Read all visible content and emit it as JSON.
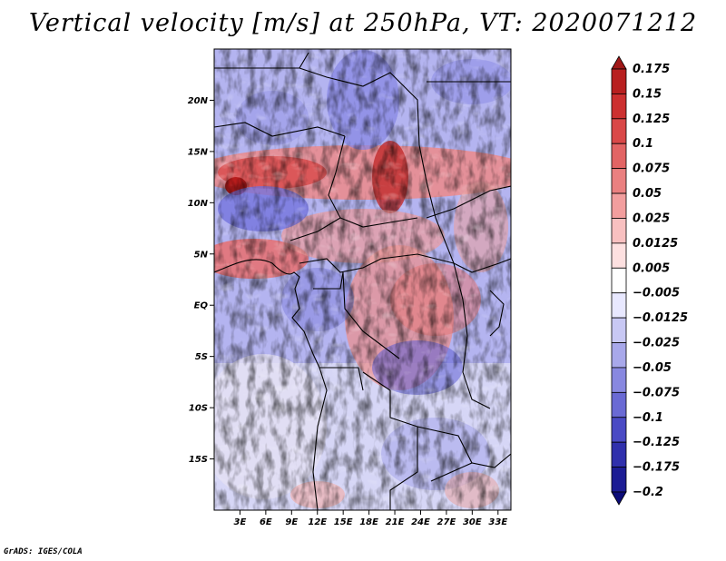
{
  "title": "Vertical velocity [m/s] at 250hPa, VT: 2020071212",
  "credit": "GrADS: IGES/COLA",
  "map": {
    "lat_labels": [
      "20N",
      "15N",
      "10N",
      "5N",
      "EQ",
      "5S",
      "10S",
      "15S"
    ],
    "lat_values": [
      20,
      15,
      10,
      5,
      0,
      -5,
      -10,
      -15
    ],
    "lon_labels": [
      "3E",
      "6E",
      "9E",
      "12E",
      "15E",
      "18E",
      "21E",
      "24E",
      "27E",
      "30E",
      "33E"
    ],
    "lon_values": [
      3,
      6,
      9,
      12,
      15,
      18,
      21,
      24,
      27,
      30,
      33
    ],
    "lon_range": [
      0,
      34.5
    ],
    "lat_range": [
      -20,
      25
    ]
  },
  "colorbar": {
    "labels": [
      "0.175",
      "0.15",
      "0.125",
      "0.1",
      "0.075",
      "0.05",
      "0.025",
      "0.0125",
      "0.005",
      "−0.005",
      "−0.0125",
      "−0.025",
      "−0.05",
      "−0.075",
      "−0.1",
      "−0.125",
      "−0.175",
      "−0.2"
    ],
    "colors": [
      "#a01818",
      "#b82020",
      "#cc3030",
      "#d94848",
      "#e26464",
      "#ea8080",
      "#f29e9e",
      "#f8c0c0",
      "#fde0e0",
      "#ffffff",
      "#e8e8ff",
      "#c8c8f4",
      "#a8a8ea",
      "#8888e0",
      "#6a6ad4",
      "#4a4ac4",
      "#3030ac",
      "#1c1c94",
      "#0c0c78"
    ]
  }
}
